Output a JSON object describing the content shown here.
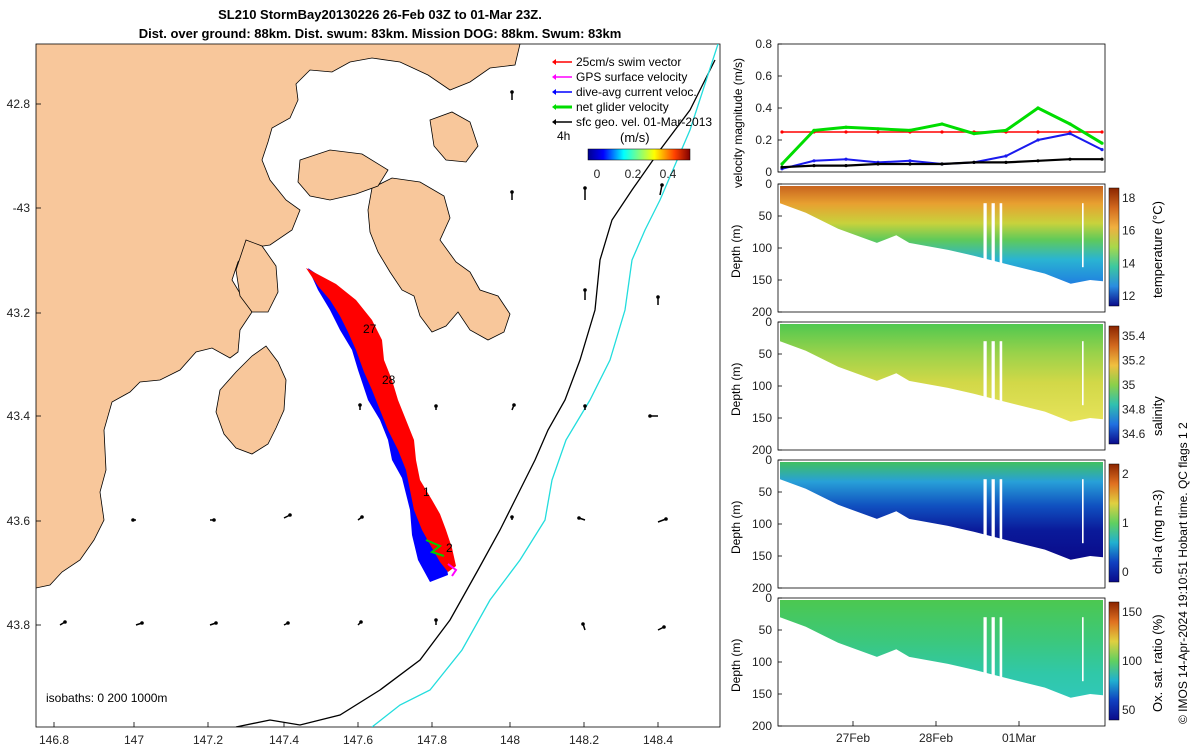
{
  "header": {
    "title": "SL210 StormBay20130226 26-Feb 03Z to 01-Mar 23Z.",
    "subtitle": "Dist. over ground: 88km. Dist. swum: 83km. Mission DOG: 88km. Swum: 83km"
  },
  "map": {
    "lon_ticks": [
      "146.8",
      "147",
      "147.2",
      "147.4",
      "147.6",
      "147.8",
      "148",
      "148.2",
      "148.4"
    ],
    "lat_ticks": [
      "42.8",
      "-43",
      "43.2",
      "43.4",
      "43.6",
      "43.8"
    ],
    "isobaths_label": "isobaths: 0   200  1000m",
    "day_labels": [
      "27",
      "28",
      "1",
      "2"
    ],
    "legend": {
      "items": [
        {
          "label": "25cm/s swim vector",
          "color": "#ff0000"
        },
        {
          "label": "GPS surface velocity",
          "color": "#ff00ff"
        },
        {
          "label": "dive-avg current veloc.",
          "color": "#0000ff"
        },
        {
          "label": "net glider velocity",
          "color": "#00dd00"
        },
        {
          "label": "sfc geo. vel. 01-Mar-2013",
          "color": "#000000"
        }
      ],
      "timestep": "4h",
      "colorbar_unit": "(m/s)",
      "colorbar_ticks": [
        "0",
        "0.2",
        "0.4"
      ]
    },
    "colors": {
      "land": "#f8c79b",
      "isobath_200": "#000000",
      "isobath_1000": "#22dddd",
      "track_red": "#ff0000",
      "track_blue": "#0000ff"
    }
  },
  "velocity_panel": {
    "ylabel": "velocity magnitude (m/s)",
    "yticks": [
      "0",
      "0.2",
      "0.4",
      "0.6",
      "0.8"
    ]
  },
  "sections": [
    {
      "ylabel": "Depth (m)",
      "clabel": "temperature (°C)",
      "yticks": [
        "0",
        "50",
        "100",
        "150",
        "200"
      ],
      "cticks": [
        "18",
        "16",
        "14",
        "12"
      ]
    },
    {
      "ylabel": "Depth (m)",
      "clabel": "salinity",
      "yticks": [
        "0",
        "50",
        "100",
        "150",
        "200"
      ],
      "cticks": [
        "35.4",
        "35.2",
        "35",
        "34.8",
        "34.6"
      ]
    },
    {
      "ylabel": "Depth (m)",
      "clabel": "chl-a (mg m-3)",
      "yticks": [
        "0",
        "50",
        "100",
        "150",
        "200"
      ],
      "cticks": [
        "2",
        "1",
        "0"
      ]
    },
    {
      "ylabel": "Depth (m)",
      "clabel": "Ox. sat. ratio (%)",
      "yticks": [
        "0",
        "50",
        "100",
        "150",
        "200"
      ],
      "cticks": [
        "150",
        "100",
        "50"
      ]
    }
  ],
  "time_axis": {
    "ticks": [
      "27Feb",
      "28Feb",
      "01Mar"
    ]
  },
  "credit": "© IMOS 14-Apr-2024 19:10:51 Hobart time. QC flags 1  2",
  "chart_data": {
    "type": "line",
    "title": "SL210 StormBay20130226 26-Feb 03Z to 01-Mar 23Z.",
    "xlabel": "",
    "ylabel": "velocity magnitude (m/s)",
    "ylim": [
      0,
      0.8
    ],
    "x": [
      "26Feb 03Z",
      "26Feb 12Z",
      "26Feb 21Z",
      "27Feb 06Z",
      "27Feb 15Z",
      "28Feb 00Z",
      "28Feb 09Z",
      "28Feb 18Z",
      "01Mar 03Z",
      "01Mar 12Z",
      "01Mar 23Z"
    ],
    "series": [
      {
        "name": "25cm/s swim vector",
        "values": [
          0.25,
          0.25,
          0.25,
          0.25,
          0.25,
          0.25,
          0.25,
          0.25,
          0.25,
          0.25,
          0.25
        ]
      },
      {
        "name": "net glider velocity",
        "values": [
          0.05,
          0.26,
          0.28,
          0.27,
          0.26,
          0.3,
          0.24,
          0.26,
          0.4,
          0.3,
          0.18
        ]
      },
      {
        "name": "dive-avg current veloc.",
        "values": [
          0.02,
          0.07,
          0.08,
          0.06,
          0.07,
          0.05,
          0.06,
          0.1,
          0.2,
          0.24,
          0.14
        ]
      },
      {
        "name": "sfc geo. vel. 01-Mar-2013",
        "values": [
          0.03,
          0.04,
          0.04,
          0.05,
          0.05,
          0.05,
          0.06,
          0.06,
          0.07,
          0.08,
          0.08
        ]
      }
    ]
  }
}
